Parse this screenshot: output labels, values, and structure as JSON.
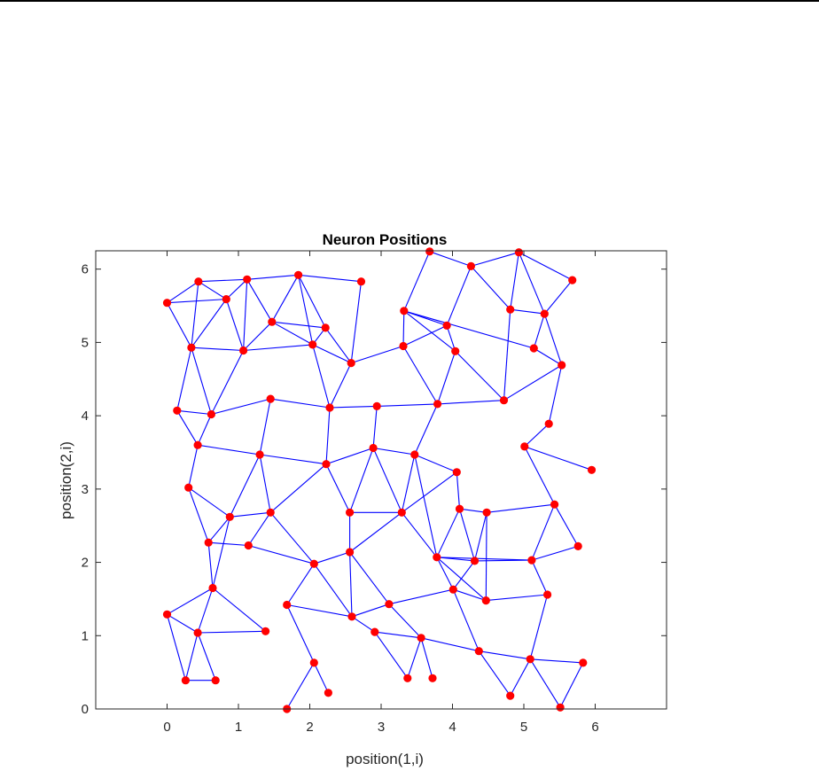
{
  "chart_data": {
    "type": "scatter",
    "title": "Neuron Positions",
    "xlabel": "position(1,i)",
    "ylabel": "position(2,i)",
    "xlim": [
      -1,
      7
    ],
    "ylim": [
      0,
      6.25
    ],
    "xticks": [
      "0",
      "1",
      "2",
      "3",
      "4",
      "5",
      "6"
    ],
    "yticks": [
      "0",
      "1",
      "2",
      "3",
      "4",
      "5",
      "6"
    ],
    "grid": false,
    "colors": {
      "edge": "#0000ff",
      "node": "#ff0000",
      "axes": "#262626"
    },
    "nodes": [
      [
        0.0,
        5.54
      ],
      [
        0.44,
        5.83
      ],
      [
        0.83,
        5.59
      ],
      [
        1.12,
        5.86
      ],
      [
        1.84,
        5.92
      ],
      [
        2.72,
        5.83
      ],
      [
        3.68,
        6.24
      ],
      [
        4.26,
        6.04
      ],
      [
        4.93,
        6.23
      ],
      [
        5.68,
        5.85
      ],
      [
        0.34,
        4.93
      ],
      [
        1.07,
        4.89
      ],
      [
        1.47,
        5.28
      ],
      [
        2.22,
        5.2
      ],
      [
        2.04,
        4.97
      ],
      [
        2.58,
        4.72
      ],
      [
        3.32,
        5.43
      ],
      [
        3.31,
        4.95
      ],
      [
        3.92,
        5.23
      ],
      [
        4.04,
        4.88
      ],
      [
        4.81,
        5.45
      ],
      [
        5.29,
        5.39
      ],
      [
        5.14,
        4.92
      ],
      [
        5.53,
        4.69
      ],
      [
        0.14,
        4.07
      ],
      [
        0.62,
        4.02
      ],
      [
        1.45,
        4.23
      ],
      [
        2.28,
        4.11
      ],
      [
        2.94,
        4.13
      ],
      [
        3.79,
        4.16
      ],
      [
        4.72,
        4.21
      ],
      [
        5.35,
        3.89
      ],
      [
        0.43,
        3.6
      ],
      [
        1.3,
        3.47
      ],
      [
        2.23,
        3.34
      ],
      [
        2.89,
        3.56
      ],
      [
        3.47,
        3.47
      ],
      [
        4.06,
        3.23
      ],
      [
        5.01,
        3.58
      ],
      [
        5.95,
        3.26
      ],
      [
        0.3,
        3.02
      ],
      [
        0.88,
        2.62
      ],
      [
        1.45,
        2.68
      ],
      [
        2.56,
        2.68
      ],
      [
        3.29,
        2.68
      ],
      [
        4.1,
        2.73
      ],
      [
        4.48,
        2.68
      ],
      [
        5.43,
        2.79
      ],
      [
        0.58,
        2.27
      ],
      [
        1.14,
        2.23
      ],
      [
        2.06,
        1.98
      ],
      [
        2.56,
        2.14
      ],
      [
        3.78,
        2.07
      ],
      [
        4.31,
        2.02
      ],
      [
        5.11,
        2.03
      ],
      [
        5.76,
        2.22
      ],
      [
        0.64,
        1.65
      ],
      [
        1.68,
        1.42
      ],
      [
        2.59,
        1.26
      ],
      [
        3.11,
        1.43
      ],
      [
        4.01,
        1.63
      ],
      [
        4.47,
        1.48
      ],
      [
        5.33,
        1.56
      ],
      [
        0.0,
        1.29
      ],
      [
        0.43,
        1.04
      ],
      [
        1.38,
        1.06
      ],
      [
        2.06,
        0.63
      ],
      [
        2.91,
        1.05
      ],
      [
        3.56,
        0.97
      ],
      [
        4.37,
        0.79
      ],
      [
        5.09,
        0.68
      ],
      [
        5.83,
        0.63
      ],
      [
        0.26,
        0.39
      ],
      [
        0.68,
        0.39
      ],
      [
        2.26,
        0.22
      ],
      [
        1.68,
        0.0
      ],
      [
        3.37,
        0.42
      ],
      [
        3.72,
        0.42
      ],
      [
        4.81,
        0.18
      ],
      [
        5.51,
        0.02
      ]
    ],
    "edges": [
      [
        0,
        1
      ],
      [
        0,
        2
      ],
      [
        0,
        10
      ],
      [
        1,
        2
      ],
      [
        1,
        3
      ],
      [
        1,
        10
      ],
      [
        2,
        3
      ],
      [
        2,
        10
      ],
      [
        2,
        11
      ],
      [
        3,
        4
      ],
      [
        3,
        11
      ],
      [
        3,
        12
      ],
      [
        4,
        5
      ],
      [
        4,
        12
      ],
      [
        4,
        13
      ],
      [
        4,
        14
      ],
      [
        5,
        15
      ],
      [
        6,
        7
      ],
      [
        6,
        16
      ],
      [
        7,
        8
      ],
      [
        7,
        18
      ],
      [
        7,
        20
      ],
      [
        8,
        9
      ],
      [
        8,
        20
      ],
      [
        8,
        21
      ],
      [
        9,
        21
      ],
      [
        10,
        11
      ],
      [
        10,
        24
      ],
      [
        10,
        25
      ],
      [
        11,
        12
      ],
      [
        11,
        14
      ],
      [
        11,
        25
      ],
      [
        12,
        13
      ],
      [
        12,
        14
      ],
      [
        13,
        14
      ],
      [
        13,
        15
      ],
      [
        14,
        15
      ],
      [
        14,
        27
      ],
      [
        15,
        17
      ],
      [
        15,
        27
      ],
      [
        16,
        17
      ],
      [
        16,
        18
      ],
      [
        16,
        19
      ],
      [
        16,
        22
      ],
      [
        17,
        18
      ],
      [
        17,
        29
      ],
      [
        18,
        19
      ],
      [
        19,
        29
      ],
      [
        19,
        30
      ],
      [
        20,
        21
      ],
      [
        20,
        30
      ],
      [
        21,
        22
      ],
      [
        21,
        23
      ],
      [
        22,
        23
      ],
      [
        23,
        30
      ],
      [
        23,
        31
      ],
      [
        24,
        25
      ],
      [
        24,
        32
      ],
      [
        25,
        26
      ],
      [
        25,
        32
      ],
      [
        26,
        27
      ],
      [
        26,
        33
      ],
      [
        27,
        28
      ],
      [
        27,
        34
      ],
      [
        28,
        29
      ],
      [
        28,
        35
      ],
      [
        29,
        30
      ],
      [
        29,
        36
      ],
      [
        31,
        38
      ],
      [
        32,
        33
      ],
      [
        32,
        40
      ],
      [
        33,
        34
      ],
      [
        33,
        41
      ],
      [
        33,
        42
      ],
      [
        34,
        35
      ],
      [
        34,
        42
      ],
      [
        34,
        43
      ],
      [
        35,
        36
      ],
      [
        35,
        43
      ],
      [
        35,
        44
      ],
      [
        36,
        37
      ],
      [
        36,
        44
      ],
      [
        36,
        52
      ],
      [
        37,
        44
      ],
      [
        37,
        45
      ],
      [
        38,
        39
      ],
      [
        38,
        47
      ],
      [
        40,
        41
      ],
      [
        40,
        48
      ],
      [
        41,
        42
      ],
      [
        41,
        48
      ],
      [
        41,
        56
      ],
      [
        42,
        49
      ],
      [
        42,
        50
      ],
      [
        43,
        44
      ],
      [
        43,
        51
      ],
      [
        44,
        51
      ],
      [
        44,
        52
      ],
      [
        45,
        46
      ],
      [
        45,
        52
      ],
      [
        45,
        53
      ],
      [
        46,
        47
      ],
      [
        46,
        53
      ],
      [
        46,
        61
      ],
      [
        47,
        54
      ],
      [
        47,
        55
      ],
      [
        48,
        49
      ],
      [
        48,
        56
      ],
      [
        49,
        50
      ],
      [
        50,
        51
      ],
      [
        50,
        57
      ],
      [
        50,
        58
      ],
      [
        51,
        58
      ],
      [
        51,
        59
      ],
      [
        52,
        53
      ],
      [
        52,
        54
      ],
      [
        52,
        60
      ],
      [
        52,
        61
      ],
      [
        53,
        54
      ],
      [
        53,
        60
      ],
      [
        54,
        55
      ],
      [
        54,
        62
      ],
      [
        56,
        63
      ],
      [
        56,
        64
      ],
      [
        56,
        65
      ],
      [
        57,
        58
      ],
      [
        57,
        66
      ],
      [
        58,
        59
      ],
      [
        58,
        67
      ],
      [
        59,
        60
      ],
      [
        59,
        68
      ],
      [
        60,
        61
      ],
      [
        60,
        69
      ],
      [
        61,
        62
      ],
      [
        62,
        70
      ],
      [
        63,
        64
      ],
      [
        63,
        72
      ],
      [
        64,
        65
      ],
      [
        64,
        72
      ],
      [
        64,
        73
      ],
      [
        66,
        74
      ],
      [
        66,
        75
      ],
      [
        67,
        68
      ],
      [
        67,
        76
      ],
      [
        68,
        69
      ],
      [
        68,
        76
      ],
      [
        68,
        77
      ],
      [
        69,
        70
      ],
      [
        69,
        78
      ],
      [
        70,
        71
      ],
      [
        70,
        78
      ],
      [
        70,
        79
      ],
      [
        71,
        79
      ],
      [
        72,
        73
      ]
    ]
  }
}
